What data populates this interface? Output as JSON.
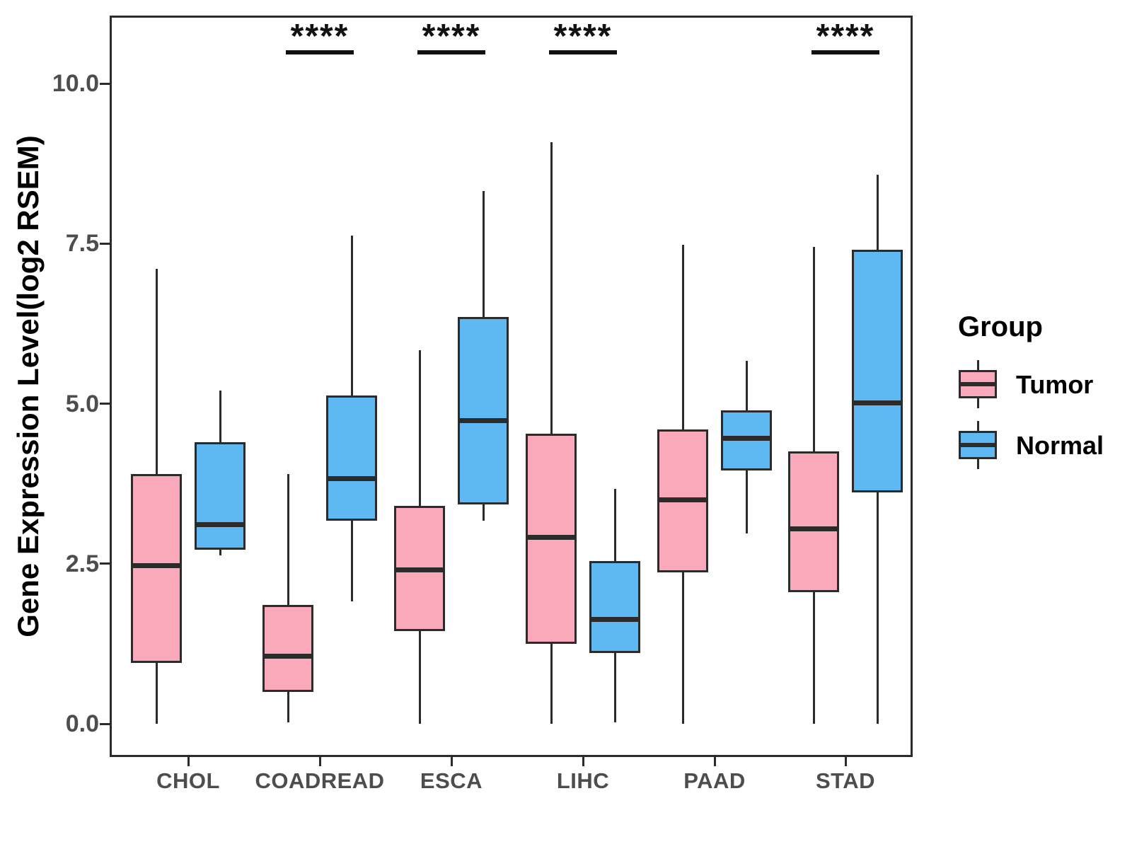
{
  "chart_data": {
    "type": "boxplot",
    "title": "",
    "xlabel": "",
    "ylabel": "Gene Expression Level(log2 RSEM)",
    "ylim": [
      -0.55,
      11.1
    ],
    "yticks": [
      0.0,
      2.5,
      5.0,
      7.5,
      10.0
    ],
    "ytick_labels": [
      "0.0",
      "2.5",
      "5.0",
      "7.5",
      "10.0"
    ],
    "grid": false,
    "categories": [
      "CHOL",
      "COADREAD",
      "ESCA",
      "LIHC",
      "PAAD",
      "STAD"
    ],
    "series": [
      {
        "name": "Tumor",
        "color": "#FAA9BB",
        "boxes": [
          {
            "lo": 0.0,
            "q1": 0.95,
            "med": 2.47,
            "q3": 3.9,
            "hi": 7.1
          },
          {
            "lo": 0.02,
            "q1": 0.5,
            "med": 1.05,
            "q3": 1.86,
            "hi": 3.9
          },
          {
            "lo": 0.0,
            "q1": 1.45,
            "med": 2.4,
            "q3": 3.4,
            "hi": 5.83
          },
          {
            "lo": 0.0,
            "q1": 1.25,
            "med": 2.91,
            "q3": 4.53,
            "hi": 9.08
          },
          {
            "lo": 0.0,
            "q1": 2.36,
            "med": 3.5,
            "q3": 4.6,
            "hi": 7.48
          },
          {
            "lo": 0.0,
            "q1": 2.05,
            "med": 3.04,
            "q3": 4.25,
            "hi": 7.45
          }
        ]
      },
      {
        "name": "Normal",
        "color": "#5EB9F2",
        "boxes": [
          {
            "lo": 2.63,
            "q1": 2.72,
            "med": 3.11,
            "q3": 4.4,
            "hi": 5.2
          },
          {
            "lo": 1.91,
            "q1": 3.17,
            "med": 3.83,
            "q3": 5.13,
            "hi": 7.62
          },
          {
            "lo": 3.17,
            "q1": 3.42,
            "med": 4.74,
            "q3": 6.35,
            "hi": 8.32
          },
          {
            "lo": 0.02,
            "q1": 1.1,
            "med": 1.63,
            "q3": 2.54,
            "hi": 3.67
          },
          {
            "lo": 2.97,
            "q1": 3.96,
            "med": 4.46,
            "q3": 4.89,
            "hi": 5.67
          },
          {
            "lo": 0.0,
            "q1": 3.61,
            "med": 5.01,
            "q3": 7.4,
            "hi": 8.58
          }
        ]
      }
    ],
    "significance": [
      {
        "category": "COADREAD",
        "label": "****"
      },
      {
        "category": "ESCA",
        "label": "****"
      },
      {
        "category": "LIHC",
        "label": "****"
      },
      {
        "category": "STAD",
        "label": "****"
      }
    ],
    "legend": {
      "title": "Group",
      "position": "right",
      "entries": [
        {
          "label": "Tumor",
          "color": "#FAA9BB"
        },
        {
          "label": "Normal",
          "color": "#5EB9F2"
        }
      ]
    },
    "colors": {
      "line": "#2B2B2B",
      "axis_text": "#4D4D4D",
      "annotation": "#111111"
    }
  }
}
